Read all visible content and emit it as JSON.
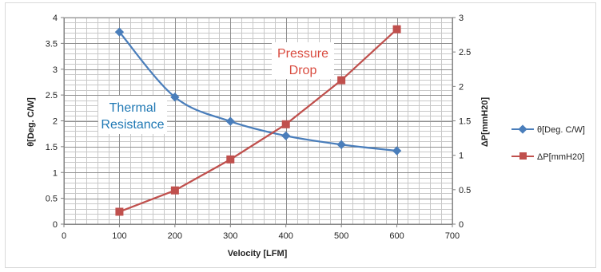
{
  "chart_data": {
    "type": "line",
    "title": "",
    "xlabel": "Velocity [LFM]",
    "ylabel_left": "θ[Deg. C/W]",
    "ylabel_right": "ΔP[mmH20]",
    "x_ticks": [
      "0",
      "100",
      "200",
      "300",
      "400",
      "500",
      "600",
      "700"
    ],
    "y_left_ticks": [
      "0",
      "0.5",
      "1",
      "1.5",
      "2",
      "2.5",
      "3",
      "3.5",
      "4"
    ],
    "y_right_ticks": [
      "0",
      "0.5",
      "1",
      "1.5",
      "2",
      "2.5",
      "3"
    ],
    "xlim": [
      0,
      700
    ],
    "ylim_left": [
      0,
      4
    ],
    "ylim_right": [
      0,
      3
    ],
    "grid": true,
    "legend_position": "right",
    "series": [
      {
        "name": "θ[Deg. C/W]",
        "axis": "left",
        "color": "#4a7ebb",
        "marker": "diamond",
        "x": [
          100,
          200,
          300,
          400,
          500,
          600
        ],
        "y": [
          3.72,
          2.46,
          1.99,
          1.71,
          1.54,
          1.42
        ]
      },
      {
        "name": "ΔP[mmH20]",
        "axis": "right",
        "color": "#c0504d",
        "marker": "square",
        "x": [
          100,
          200,
          300,
          400,
          500,
          600
        ],
        "y": [
          0.18,
          0.49,
          0.94,
          1.45,
          2.09,
          2.83
        ]
      }
    ],
    "annotations": [
      {
        "id": "thermal",
        "lines": [
          "Thermal",
          "Resistance"
        ],
        "color": "#1f78b4"
      },
      {
        "id": "pressure",
        "lines": [
          "Pressure",
          "Drop"
        ],
        "color": "#d94b3f"
      }
    ]
  }
}
